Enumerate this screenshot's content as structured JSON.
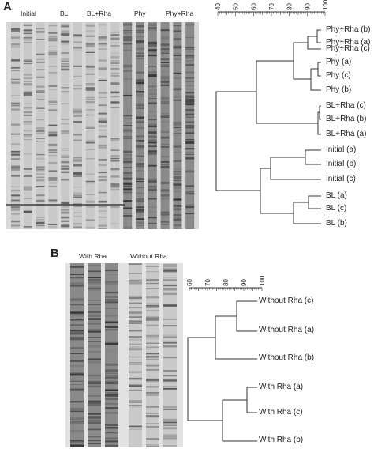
{
  "panelA": {
    "letter": "A",
    "lane_groups": [
      "Initial",
      "BL",
      "BL+Rha",
      "Phy",
      "Phy+Rha"
    ],
    "scale_ticks": [
      "40",
      "50",
      "60",
      "70",
      "80",
      "90",
      "100"
    ],
    "leaves": [
      "Phy+Rha (b)",
      "Phy+Rha (a)",
      "Phy+Rha (c)",
      "Phy (a)",
      "Phy (c)",
      "Phy (b)",
      "BL+Rha (c)",
      "BL+Rha (b)",
      "BL+Rha (a)",
      "Initial (a)",
      "Initial (b)",
      "Initial (c)",
      "BL (a)",
      "BL (c)",
      "BL (b)"
    ]
  },
  "panelB": {
    "letter": "B",
    "lane_groups": [
      "With Rha",
      "Without Rha"
    ],
    "scale_ticks": [
      "60",
      "70",
      "80",
      "90",
      "100"
    ],
    "leaves": [
      "Without Rha (c)",
      "Without Rha (a)",
      "Without Rha (b)",
      "With Rha (a)",
      "With Rha (c)",
      "With Rha (b)"
    ]
  }
}
